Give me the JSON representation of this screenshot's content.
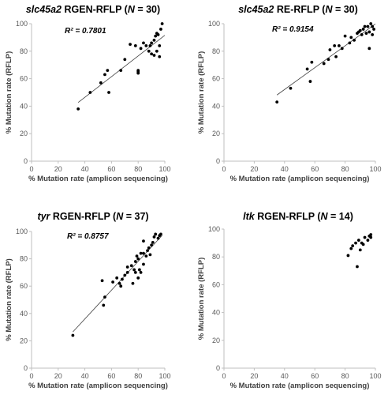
{
  "chart_data": [
    {
      "type": "scatter",
      "title_gene": "slc45a2",
      "title_rest": " RGEN-RFLP (",
      "title_n_label": "N",
      "title_n": " = 30)",
      "r2_label": "R² = 0.7801",
      "xlabel": "% Mutation rate (amplicon sequencing)",
      "ylabel": "% Mutation rate (RFLP)",
      "xlim": [
        0,
        100
      ],
      "ylim": [
        0,
        100
      ],
      "xticks": [
        "0",
        "20",
        "40",
        "60",
        "80",
        "100"
      ],
      "yticks": [
        "0",
        "20",
        "40",
        "60",
        "80",
        "100"
      ],
      "trendline": true,
      "trend_x": [
        35,
        100
      ],
      "x": [
        35,
        44,
        52,
        55,
        57,
        58,
        67,
        70,
        74,
        78,
        80,
        80,
        80,
        82,
        84,
        86,
        88,
        89,
        90,
        90,
        92,
        92,
        93,
        94,
        94,
        95,
        96,
        96,
        97,
        98
      ],
      "y": [
        38,
        50,
        57,
        63,
        66,
        50,
        66,
        74,
        85,
        84,
        65,
        64,
        66,
        82,
        86,
        84,
        80,
        84,
        78,
        86,
        77,
        88,
        91,
        93,
        80,
        92,
        84,
        76,
        96,
        100
      ]
    },
    {
      "type": "scatter",
      "title_gene": "slc45a2",
      "title_rest": " RE-RFLP (",
      "title_n_label": "N",
      "title_n": " = 30)",
      "r2_label": "R² = 0.9154",
      "xlabel": "% Mutation rate (amplicon sequencing)",
      "ylabel": "% Mutation rate (RFLP)",
      "xlim": [
        0,
        100
      ],
      "ylim": [
        0,
        100
      ],
      "xticks": [
        "0",
        "20",
        "40",
        "60",
        "80",
        "100"
      ],
      "yticks": [
        "0",
        "20",
        "40",
        "60",
        "80",
        "100"
      ],
      "trendline": true,
      "trend_x": [
        35,
        100
      ],
      "x": [
        35,
        44,
        55,
        57,
        58,
        66,
        69,
        70,
        73,
        74,
        76,
        78,
        80,
        83,
        84,
        86,
        88,
        89,
        90,
        91,
        92,
        93,
        94,
        95,
        96,
        96,
        97,
        98,
        98,
        99
      ],
      "y": [
        43,
        53,
        67,
        58,
        72,
        71,
        74,
        81,
        84,
        76,
        84,
        82,
        91,
        86,
        90,
        88,
        93,
        94,
        95,
        92,
        96,
        98,
        93,
        98,
        94,
        82,
        100,
        98,
        92,
        96
      ]
    },
    {
      "type": "scatter",
      "title_gene": "tyr",
      "title_rest": " RGEN-RFLP (",
      "title_n_label": "N",
      "title_n": " = 37)",
      "r2_label": "R² = 0.8757",
      "xlabel": "% Mutation rate (amplicon sequencing)",
      "ylabel": "% Mutation rate (RFLP)",
      "xlim": [
        0,
        100
      ],
      "ylim": [
        0,
        100
      ],
      "xticks": [
        "0",
        "20",
        "40",
        "60",
        "80",
        "100"
      ],
      "yticks": [
        "0",
        "20",
        "40",
        "60",
        "80",
        "100"
      ],
      "trendline": true,
      "trend_x": [
        31,
        98
      ],
      "x": [
        31,
        53,
        54,
        55,
        61,
        64,
        66,
        67,
        68,
        70,
        72,
        72,
        75,
        76,
        77,
        78,
        78,
        79,
        80,
        80,
        81,
        82,
        82,
        84,
        84,
        84,
        86,
        87,
        88,
        89,
        90,
        91,
        92,
        93,
        95,
        96,
        97
      ],
      "y": [
        24,
        64,
        46,
        52,
        63,
        66,
        62,
        60,
        65,
        68,
        74,
        70,
        75,
        62,
        72,
        78,
        70,
        82,
        80,
        66,
        72,
        84,
        70,
        84,
        76,
        93,
        82,
        86,
        88,
        83,
        90,
        92,
        96,
        98,
        95,
        97,
        98
      ]
    },
    {
      "type": "scatter",
      "title_gene": "ltk",
      "title_rest": " RGEN-RFLP (",
      "title_n_label": "N",
      "title_n": " = 14)",
      "r2_label": "",
      "xlabel": "% Mutation rate (amplicon sequencing)",
      "ylabel": "% Mutation rate (RFLP)",
      "xlim": [
        0,
        100
      ],
      "ylim": [
        0,
        100
      ],
      "xticks": [
        "0",
        "20",
        "40",
        "60",
        "80",
        "100"
      ],
      "yticks": [
        "0",
        "20",
        "40",
        "60",
        "80",
        "100"
      ],
      "trendline": false,
      "x": [
        82,
        84,
        85,
        87,
        88,
        89,
        90,
        91,
        92,
        93,
        95,
        96,
        97,
        97
      ],
      "y": [
        81,
        86,
        88,
        90,
        73,
        92,
        85,
        90,
        89,
        94,
        92,
        95,
        96,
        94
      ]
    }
  ]
}
